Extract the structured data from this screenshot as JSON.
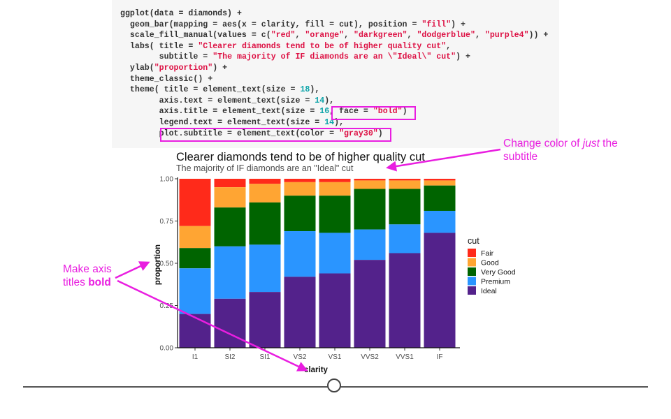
{
  "code_lines": [
    [
      {
        "t": "ggplot(data = diamonds) +"
      }
    ],
    [
      {
        "t": "  geom_bar(mapping = aes(x = clarity, fill = cut), position = "
      },
      {
        "t": "\"fill\"",
        "c": "str"
      },
      {
        "t": ") +"
      }
    ],
    [
      {
        "t": "  scale_fill_manual(values = c("
      },
      {
        "t": "\"red\"",
        "c": "str"
      },
      {
        "t": ", "
      },
      {
        "t": "\"orange\"",
        "c": "str"
      },
      {
        "t": ", "
      },
      {
        "t": "\"darkgreen\"",
        "c": "str"
      },
      {
        "t": ", "
      },
      {
        "t": "\"dodgerblue\"",
        "c": "str"
      },
      {
        "t": ", "
      },
      {
        "t": "\"purple4\"",
        "c": "str"
      },
      {
        "t": ")) +"
      }
    ],
    [
      {
        "t": "  labs( title = "
      },
      {
        "t": "\"Clearer diamonds tend to be of higher quality cut\"",
        "c": "str"
      },
      {
        "t": ","
      }
    ],
    [
      {
        "t": "        subtitle = "
      },
      {
        "t": "\"The majority of IF diamonds are an \\\"Ideal\\\" cut\"",
        "c": "str"
      },
      {
        "t": ") +"
      }
    ],
    [
      {
        "t": "  ylab("
      },
      {
        "t": "\"proportion\"",
        "c": "str"
      },
      {
        "t": ") +"
      }
    ],
    [
      {
        "t": "  theme_classic() +"
      }
    ],
    [
      {
        "t": "  theme( title = element_text(size = "
      },
      {
        "t": "18",
        "c": "num"
      },
      {
        "t": "),"
      }
    ],
    [
      {
        "t": "        axis.text = element_text(size = "
      },
      {
        "t": "14",
        "c": "num"
      },
      {
        "t": "),"
      }
    ],
    [
      {
        "t": "        axis.title = element_text(size = "
      },
      {
        "t": "16",
        "c": "num"
      },
      {
        "t": ", face = "
      },
      {
        "t": "\"bold\"",
        "c": "str"
      },
      {
        "t": ")"
      }
    ],
    [
      {
        "t": "        legend.text = element_text(size = "
      },
      {
        "t": "14",
        "c": "num"
      },
      {
        "t": "),"
      }
    ],
    [
      {
        "t": "        plot.subtitle = element_text(color = "
      },
      {
        "t": "\"gray30\"",
        "c": "str"
      },
      {
        "t": ")"
      }
    ]
  ],
  "annotations": {
    "subtitle_note_line1_pre": "Change color of ",
    "subtitle_note_line1_em": "just",
    "subtitle_note_line1_post": " the",
    "subtitle_note_line2": "subtitle",
    "axis_note_line1": "Make axis",
    "axis_note_line2_pre": "titles ",
    "axis_note_line2_bold": "bold"
  },
  "colors": {
    "annotation": "#e91ee0",
    "Fair": "#ff2a1a",
    "Good": "#ffa533",
    "Very Good": "#006400",
    "Premium": "#2a95ff",
    "Ideal": "#53228b"
  },
  "chart_data": {
    "type": "bar",
    "stacked": "fill",
    "title": "Clearer diamonds tend to be of higher quality cut",
    "subtitle": "The majority of IF diamonds are an \"Ideal\" cut",
    "xlabel": "clarity",
    "ylabel": "proportion",
    "ylim": [
      0,
      1
    ],
    "yticks": [
      "0.00",
      "0.25",
      "0.50",
      "0.75",
      "1.00"
    ],
    "categories": [
      "I1",
      "SI2",
      "SI1",
      "VS2",
      "VS1",
      "VVS2",
      "VVS1",
      "IF"
    ],
    "legend_title": "cut",
    "legend_position": "right",
    "series": [
      {
        "name": "Fair",
        "values": [
          0.28,
          0.05,
          0.03,
          0.02,
          0.02,
          0.01,
          0.01,
          0.01
        ]
      },
      {
        "name": "Good",
        "values": [
          0.13,
          0.12,
          0.11,
          0.08,
          0.08,
          0.05,
          0.05,
          0.03
        ]
      },
      {
        "name": "Very Good",
        "values": [
          0.12,
          0.23,
          0.25,
          0.21,
          0.22,
          0.24,
          0.21,
          0.15
        ]
      },
      {
        "name": "Premium",
        "values": [
          0.27,
          0.31,
          0.28,
          0.27,
          0.24,
          0.18,
          0.17,
          0.13
        ]
      },
      {
        "name": "Ideal",
        "values": [
          0.2,
          0.29,
          0.33,
          0.42,
          0.44,
          0.52,
          0.56,
          0.68
        ]
      }
    ]
  }
}
